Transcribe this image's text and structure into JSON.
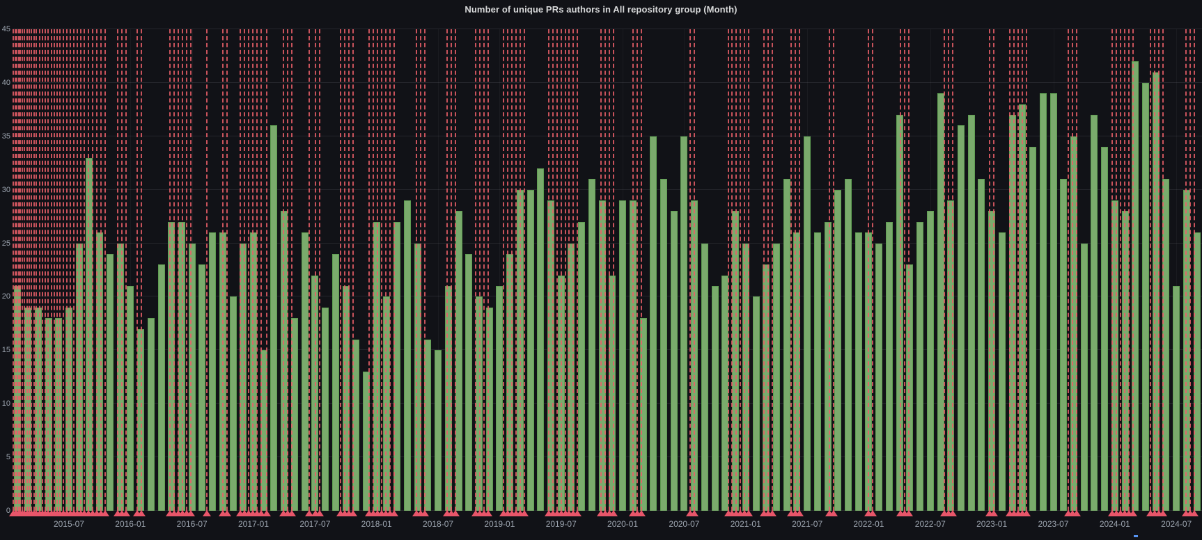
{
  "panel": {
    "title": "Number of unique PRs authors in All repository group (Month)"
  },
  "colors": {
    "background": "#111217",
    "bar_fill": "#7aab6c",
    "bar_border": "#5f9e52",
    "annotation_red": "#ea5f69",
    "grid": "rgba(204,204,220,0.11)",
    "axis_text": "#9da5b0",
    "title_text": "#d8d9da",
    "blue_tick": "#5794f2"
  },
  "chart_data": {
    "type": "bar",
    "title": "Number of unique PRs authors in All repository group (Month)",
    "xlabel": "",
    "ylabel": "",
    "ylim": [
      0,
      45
    ],
    "grid": true,
    "legend_position": "none",
    "y_ticks": [
      0,
      5,
      10,
      15,
      20,
      25,
      30,
      35,
      40,
      45
    ],
    "x_tick_labels": [
      "2015-07",
      "2016-01",
      "2016-07",
      "2017-01",
      "2017-07",
      "2018-01",
      "2018-07",
      "2019-01",
      "2019-07",
      "2020-01",
      "2020-07",
      "2021-01",
      "2021-07",
      "2022-01",
      "2022-07",
      "2023-01",
      "2023-07",
      "2024-01",
      "2024-07"
    ],
    "categories": [
      "2015-02",
      "2015-03",
      "2015-04",
      "2015-05",
      "2015-06",
      "2015-07",
      "2015-08",
      "2015-09",
      "2015-10",
      "2015-11",
      "2015-12",
      "2016-01",
      "2016-02",
      "2016-03",
      "2016-04",
      "2016-05",
      "2016-06",
      "2016-07",
      "2016-08",
      "2016-09",
      "2016-10",
      "2016-11",
      "2016-12",
      "2017-01",
      "2017-02",
      "2017-03",
      "2017-04",
      "2017-05",
      "2017-06",
      "2017-07",
      "2017-08",
      "2017-09",
      "2017-10",
      "2017-11",
      "2017-12",
      "2018-01",
      "2018-02",
      "2018-03",
      "2018-04",
      "2018-05",
      "2018-06",
      "2018-07",
      "2018-08",
      "2018-09",
      "2018-10",
      "2018-11",
      "2018-12",
      "2019-01",
      "2019-02",
      "2019-03",
      "2019-04",
      "2019-05",
      "2019-06",
      "2019-07",
      "2019-08",
      "2019-09",
      "2019-10",
      "2019-11",
      "2019-12",
      "2020-01",
      "2020-02",
      "2020-03",
      "2020-04",
      "2020-05",
      "2020-06",
      "2020-07",
      "2020-08",
      "2020-09",
      "2020-10",
      "2020-11",
      "2020-12",
      "2021-01",
      "2021-02",
      "2021-03",
      "2021-04",
      "2021-05",
      "2021-06",
      "2021-07",
      "2021-08",
      "2021-09",
      "2021-10",
      "2021-11",
      "2021-12",
      "2022-01",
      "2022-02",
      "2022-03",
      "2022-04",
      "2022-05",
      "2022-06",
      "2022-07",
      "2022-08",
      "2022-09",
      "2022-10",
      "2022-11",
      "2022-12",
      "2023-01",
      "2023-02",
      "2023-03",
      "2023-04",
      "2023-05",
      "2023-06",
      "2023-07",
      "2023-08",
      "2023-09",
      "2023-10",
      "2023-11",
      "2023-12",
      "2024-01",
      "2024-02",
      "2024-03",
      "2024-04",
      "2024-05",
      "2024-06",
      "2024-07",
      "2024-08",
      "2024-09"
    ],
    "values": [
      21,
      19,
      19,
      18,
      18,
      19,
      25,
      33,
      26,
      24,
      25,
      21,
      17,
      18,
      23,
      27,
      27,
      25,
      23,
      26,
      26,
      20,
      25,
      26,
      15,
      36,
      28,
      18,
      26,
      22,
      19,
      24,
      21,
      16,
      13,
      27,
      20,
      27,
      29,
      25,
      16,
      15,
      21,
      28,
      24,
      20,
      19,
      21,
      24,
      30,
      30,
      32,
      29,
      22,
      25,
      27,
      31,
      29,
      22,
      29,
      29,
      18,
      35,
      31,
      28,
      35,
      29,
      25,
      21,
      22,
      28,
      25,
      20,
      23,
      25,
      31,
      26,
      35,
      26,
      27,
      30,
      31,
      26,
      26,
      25,
      27,
      37,
      23,
      27,
      28,
      39,
      29,
      36,
      37,
      31,
      28,
      26,
      37,
      38,
      34,
      39,
      39,
      31,
      35,
      25,
      37,
      34,
      29,
      28,
      42,
      40,
      41,
      31,
      21,
      30,
      26
    ],
    "annotations_pct": [
      0.0,
      0.15,
      0.3,
      0.45,
      0.6,
      0.75,
      0.95,
      1.15,
      1.35,
      1.55,
      1.75,
      1.95,
      2.2,
      2.45,
      2.7,
      2.95,
      3.2,
      3.45,
      3.7,
      3.95,
      4.2,
      4.5,
      4.8,
      5.1,
      5.4,
      5.7,
      6.0,
      6.35,
      6.7,
      7.05,
      7.4,
      7.75,
      8.8,
      9.15,
      9.5,
      10.4,
      10.75,
      13.2,
      13.55,
      13.9,
      14.25,
      14.6,
      14.95,
      16.3,
      17.6,
      17.95,
      19.1,
      19.45,
      19.8,
      20.15,
      20.5,
      20.85,
      21.3,
      22.7,
      23.05,
      23.4,
      24.9,
      25.4,
      25.75,
      27.5,
      27.85,
      28.2,
      28.55,
      29.9,
      30.25,
      30.6,
      30.95,
      31.3,
      31.65,
      32.0,
      33.9,
      34.25,
      34.6,
      36.5,
      36.85,
      37.2,
      38.9,
      39.25,
      39.6,
      39.95,
      41.2,
      41.55,
      41.9,
      42.25,
      42.6,
      42.95,
      45.0,
      45.35,
      45.7,
      46.05,
      46.4,
      46.75,
      47.1,
      47.45,
      49.4,
      49.75,
      50.1,
      50.45,
      52.1,
      52.45,
      52.8,
      56.9,
      57.25,
      60.1,
      60.45,
      60.8,
      61.15,
      61.5,
      61.85,
      63.1,
      63.45,
      63.8,
      65.4,
      65.75,
      66.1,
      68.6,
      68.95,
      71.9,
      72.25,
      74.6,
      74.95,
      75.3,
      78.3,
      78.65,
      79.0,
      82.1,
      82.45,
      83.8,
      84.15,
      84.5,
      84.85,
      85.2,
      88.7,
      89.05,
      89.4,
      92.4,
      92.75,
      93.1,
      93.45,
      93.8,
      94.15,
      95.6,
      95.95,
      96.3,
      96.65,
      98.6,
      98.95,
      99.3
    ]
  }
}
